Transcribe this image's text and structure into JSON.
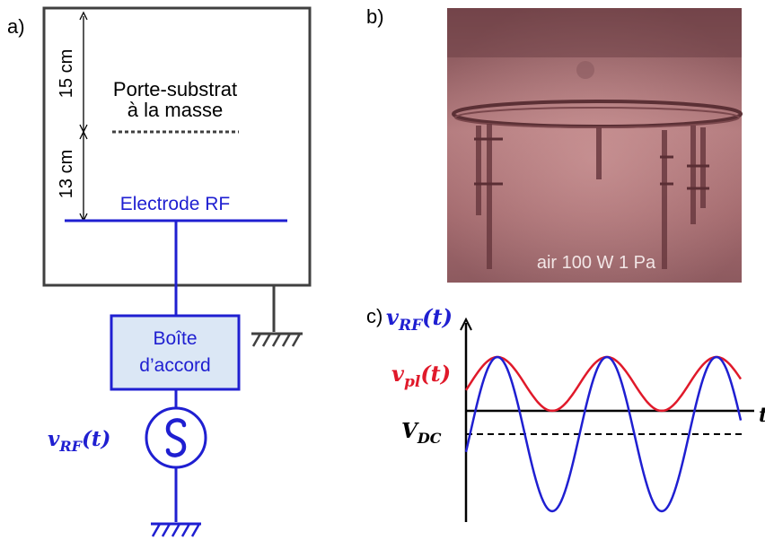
{
  "panel_a": {
    "label": "a)",
    "dim_upper": "15 cm",
    "dim_lower": "13 cm",
    "substrate_line1": "Porte-substrat",
    "substrate_line2": "à la masse",
    "electrode": "Electrode RF",
    "box_line1": "Boîte",
    "box_line2": "d’accord",
    "source_sym": "v",
    "source_sub": "RF",
    "source_arg": "(t)"
  },
  "panel_b": {
    "label": "b)",
    "caption": "air  100 W  1 Pa"
  },
  "panel_c": {
    "label": "c)",
    "vrf_sym": "v",
    "vrf_sub": "RF",
    "vrf_arg": "(t)",
    "vpl_sym": "v",
    "vpl_sub": "pl",
    "vpl_arg": "(t)",
    "vdc_sym": "V",
    "vdc_sub": "DC",
    "t_axis": "t"
  },
  "colors": {
    "blue": "#1f1fd1",
    "red": "#e0192a",
    "dark": "#404040",
    "box_fill": "#dbe7f5"
  }
}
